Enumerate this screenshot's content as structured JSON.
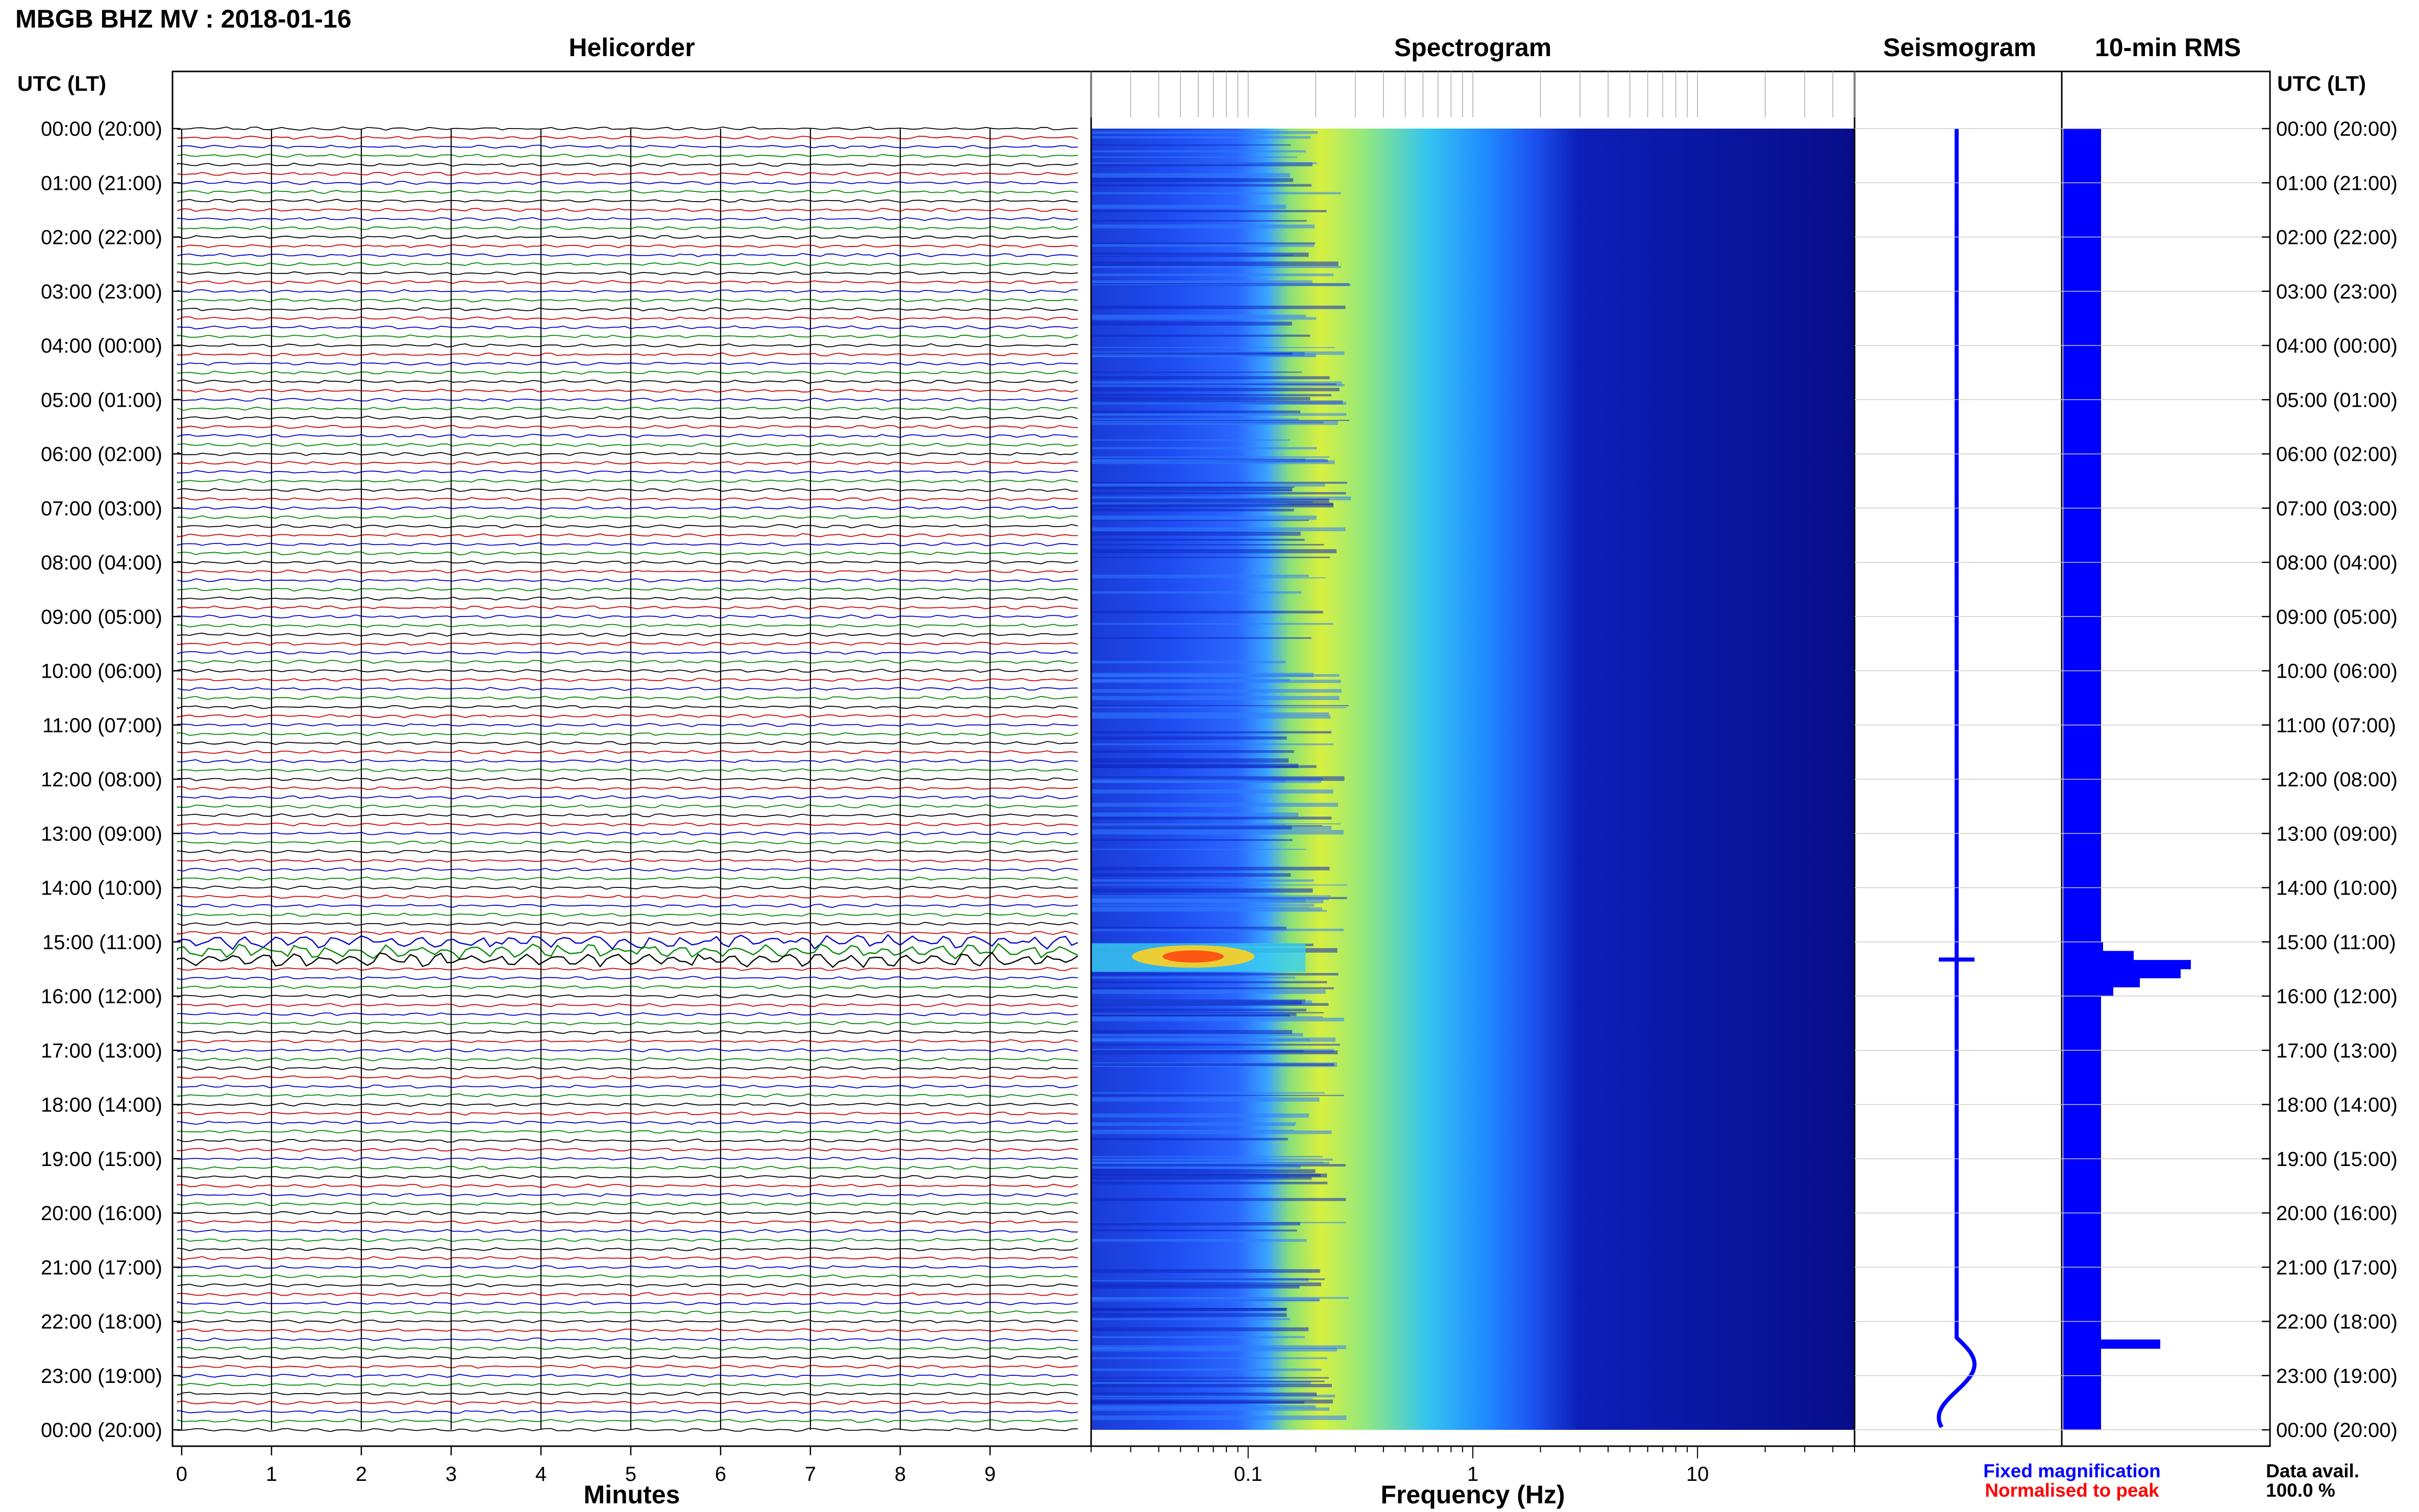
{
  "header": {
    "title": "MBGB BHZ MV : 2018-01-16"
  },
  "panels": {
    "helicorder": "Helicorder",
    "spectrogram": "Spectrogram",
    "seismogram": "Seismogram",
    "rms": "10-min RMS"
  },
  "axis": {
    "time_label_left": "UTC (LT)",
    "time_label_right": "UTC (LT)",
    "helicorder_xlabel": "Minutes",
    "spectrogram_xlabel": "Frequency (Hz)"
  },
  "legend": {
    "fixed": "Fixed magnification",
    "normalised": "Normalised to peak",
    "data_avail_label": "Data avail.",
    "data_avail_value": "100.0 %"
  },
  "colors": {
    "helicorder_traces": [
      "#000000",
      "#cc0000",
      "#0000cc",
      "#008800"
    ],
    "fixed_magnification": "#0000ff",
    "normalised": "#ff0000",
    "rms_bar": "#0000ff",
    "seismogram": "#0000ff"
  },
  "chart_data": {
    "type": "heatmap",
    "time_ticks": [
      "00:00 (20:00)",
      "01:00 (21:00)",
      "02:00 (22:00)",
      "03:00 (23:00)",
      "04:00 (00:00)",
      "05:00 (01:00)",
      "06:00 (02:00)",
      "07:00 (03:00)",
      "08:00 (04:00)",
      "09:00 (05:00)",
      "10:00 (06:00)",
      "11:00 (07:00)",
      "12:00 (08:00)",
      "13:00 (09:00)",
      "14:00 (10:00)",
      "15:00 (11:00)",
      "16:00 (12:00)",
      "17:00 (13:00)",
      "18:00 (14:00)",
      "19:00 (15:00)",
      "20:00 (16:00)",
      "21:00 (17:00)",
      "22:00 (18:00)",
      "23:00 (19:00)",
      "00:00 (20:00)"
    ],
    "helicorder": {
      "x_ticks": [
        "0",
        "1",
        "2",
        "3",
        "4",
        "5",
        "6",
        "7",
        "8",
        "9"
      ],
      "xlim": [
        0,
        10
      ],
      "rows_per_hour": 6
    },
    "spectrogram": {
      "x_ticks": [
        "0.1",
        "1",
        "10"
      ],
      "xscale": "log",
      "xlim": [
        0.02,
        50
      ]
    },
    "events_utc_hours": [
      15.1,
      22.3
    ],
    "rms_10min": [
      6,
      6,
      6,
      6,
      6,
      6,
      6,
      6,
      6,
      6,
      6,
      6,
      6,
      6,
      6,
      6,
      6,
      6,
      6,
      6,
      6,
      6,
      6,
      6,
      6,
      6,
      6,
      6,
      6,
      6,
      6,
      6,
      6,
      6,
      6,
      6,
      6,
      6,
      6,
      6,
      6,
      6,
      6,
      6,
      6,
      6,
      6,
      6,
      6,
      6,
      6,
      6,
      6,
      6,
      6,
      6,
      6,
      6,
      6,
      6,
      6,
      6,
      6,
      6,
      6,
      6,
      6,
      6,
      6,
      6,
      6,
      6,
      6,
      6,
      6,
      6,
      6,
      6,
      6,
      6,
      6,
      6,
      6,
      6,
      6,
      6,
      6,
      6,
      6,
      6,
      7,
      22,
      50,
      45,
      25,
      12,
      6,
      6,
      6,
      6,
      6,
      6,
      6,
      6,
      6,
      6,
      6,
      6,
      6,
      6,
      6,
      6,
      6,
      6,
      6,
      6,
      6,
      6,
      6,
      6,
      6,
      6,
      6,
      6,
      6,
      6,
      6,
      6,
      6,
      6,
      6,
      6,
      6,
      6,
      35,
      6,
      6,
      6,
      6,
      6,
      6,
      6,
      6,
      6
    ]
  }
}
